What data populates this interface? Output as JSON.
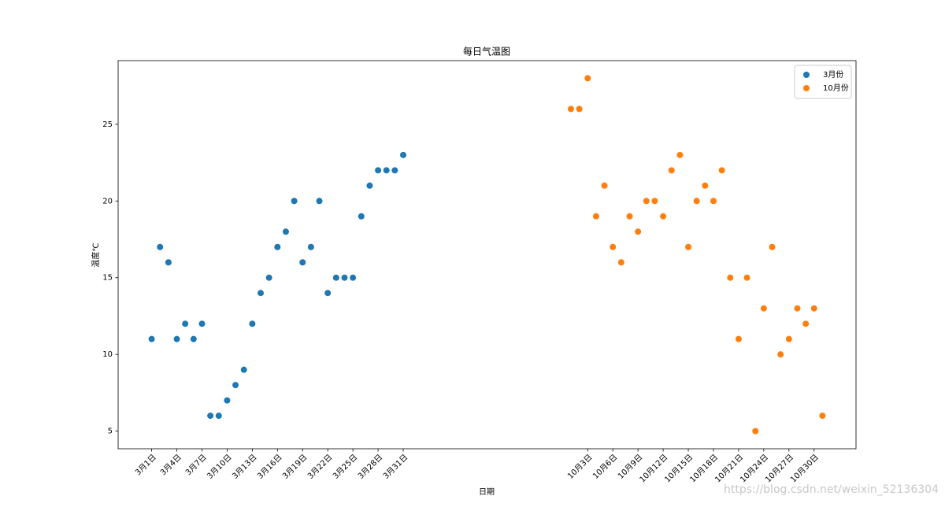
{
  "chart_data": {
    "type": "scatter",
    "title": "每日气温图",
    "x_label": "日期",
    "y_label": "温度℃",
    "xlim": [
      -3,
      85
    ],
    "ylim": [
      3.85,
      29.15
    ],
    "xticks": [
      {
        "value": 1,
        "label": "3月1日"
      },
      {
        "value": 4,
        "label": "3月4日"
      },
      {
        "value": 7,
        "label": "3月7日"
      },
      {
        "value": 10,
        "label": "3月10日"
      },
      {
        "value": 13,
        "label": "3月13日"
      },
      {
        "value": 16,
        "label": "3月16日"
      },
      {
        "value": 19,
        "label": "3月19日"
      },
      {
        "value": 22,
        "label": "3月22日"
      },
      {
        "value": 25,
        "label": "3月25日"
      },
      {
        "value": 28,
        "label": "3月28日"
      },
      {
        "value": 31,
        "label": "3月31日"
      },
      {
        "value": 53,
        "label": "10月3日"
      },
      {
        "value": 56,
        "label": "10月6日"
      },
      {
        "value": 59,
        "label": "10月9日"
      },
      {
        "value": 62,
        "label": "10月12日"
      },
      {
        "value": 65,
        "label": "10月15日"
      },
      {
        "value": 68,
        "label": "10月18日"
      },
      {
        "value": 71,
        "label": "10月21日"
      },
      {
        "value": 74,
        "label": "10月24日"
      },
      {
        "value": 77,
        "label": "10月27日"
      },
      {
        "value": 80,
        "label": "10月30日"
      }
    ],
    "yticks": [
      5,
      10,
      15,
      20,
      25
    ],
    "legend": "upper right",
    "series": [
      {
        "name": "3月份",
        "color": "#1f77b4",
        "x": [
          1,
          2,
          3,
          4,
          5,
          6,
          7,
          8,
          9,
          10,
          11,
          12,
          13,
          14,
          15,
          16,
          17,
          18,
          19,
          20,
          21,
          22,
          23,
          24,
          25,
          26,
          27,
          28,
          29,
          30,
          31
        ],
        "values": [
          11,
          17,
          16,
          11,
          12,
          11,
          12,
          6,
          6,
          7,
          8,
          9,
          12,
          14,
          15,
          17,
          18,
          20,
          16,
          17,
          20,
          14,
          15,
          15,
          15,
          19,
          21,
          22,
          22,
          22,
          23
        ]
      },
      {
        "name": "10月份",
        "color": "#ff7f0e",
        "x": [
          51,
          52,
          53,
          54,
          55,
          56,
          57,
          58,
          59,
          60,
          61,
          62,
          63,
          64,
          65,
          66,
          67,
          68,
          69,
          70,
          71,
          72,
          73,
          74,
          75,
          76,
          77,
          78,
          79,
          80,
          81
        ],
        "values": [
          26,
          26,
          28,
          19,
          21,
          17,
          16,
          19,
          18,
          20,
          20,
          19,
          22,
          23,
          17,
          20,
          21,
          20,
          22,
          15,
          11,
          15,
          5,
          13,
          17,
          10,
          11,
          13,
          12,
          13,
          6
        ]
      }
    ],
    "watermark": "https://blog.csdn.net/weixin_52136304"
  }
}
